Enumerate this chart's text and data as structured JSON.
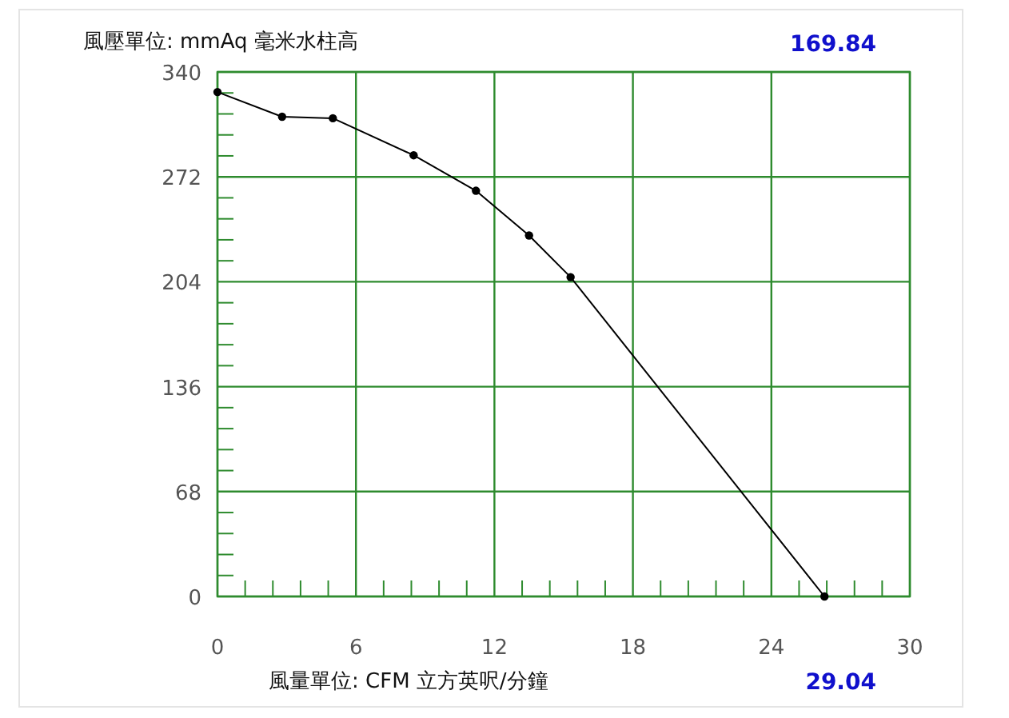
{
  "chart_data": {
    "type": "line",
    "ylabel": "風壓單位: mmAq 毫米水柱高",
    "xlabel": "風量單位:  CFM 立方英呎/分鐘",
    "annotations": [
      "169.84",
      "29.04"
    ],
    "x": [
      0,
      2.8,
      5.0,
      8.5,
      11.2,
      13.5,
      15.3,
      26.3
    ],
    "series": [
      {
        "color": "#000000",
        "values": [
          327,
          311,
          310,
          286,
          263,
          234,
          207,
          0
        ]
      }
    ],
    "xlim": [
      0,
      30
    ],
    "xticks": [
      0,
      6,
      12,
      18,
      24,
      30
    ],
    "ylim": [
      0,
      340
    ],
    "yticks": [
      0,
      68,
      136,
      204,
      272,
      340
    ],
    "grid": true,
    "marker": "circle",
    "line_style": "solid"
  }
}
